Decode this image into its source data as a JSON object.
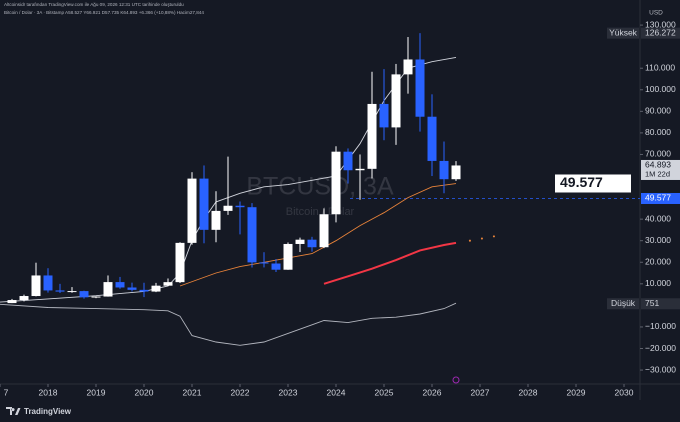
{
  "chart_data": {
    "type": "candlestick",
    "title": "BTCUSD, 3A",
    "subtitle": "Bitcoin / Dolar",
    "header": [
      "Altcoinsidr tarafından TradingView.com ile Ağu 09, 2026 12:31 UTC tarihinde oluşturuldu",
      "Bitcoin / Dolar · 3A · Bitstamp  A58.527 Y66.921 D57.735 K64.893 +6.366 (+10,88%) Hacim27,844"
    ],
    "currency": "USD",
    "brand": "TradingView",
    "x": [
      2017.25,
      2017.5,
      2017.75,
      2018,
      2018.25,
      2018.5,
      2018.75,
      2019,
      2019.25,
      2019.5,
      2019.75,
      2020,
      2020.25,
      2020.5,
      2020.75,
      2021,
      2021.25,
      2021.5,
      2021.75,
      2022,
      2022.25,
      2022.5,
      2022.75,
      2023,
      2023.25,
      2023.5,
      2023.75,
      2024,
      2024.25,
      2024.5,
      2024.75,
      2025,
      2025.25,
      2025.5,
      2025.75,
      2026,
      2026.25,
      2026.5
    ],
    "open": [
      1070,
      2480,
      4340,
      13880,
      6930,
      6390,
      6630,
      3740,
      4100,
      10800,
      8300,
      7200,
      6410,
      9140,
      10780,
      28990,
      58800,
      35040,
      43820,
      46210,
      45540,
      19940,
      19420,
      16540,
      28480,
      30470,
      26970,
      42270,
      71290,
      62680,
      63330,
      93430,
      82550,
      107140,
      114050,
      87500,
      67000,
      58527
    ],
    "high": [
      2990,
      4980,
      19800,
      17250,
      9990,
      8490,
      6820,
      4200,
      13880,
      13200,
      10550,
      10500,
      10430,
      12480,
      29300,
      61780,
      64900,
      52950,
      69000,
      48190,
      47440,
      24670,
      21470,
      29190,
      31430,
      31800,
      45000,
      73800,
      72800,
      70000,
      108350,
      109590,
      111980,
      124470,
      126272,
      97900,
      76000,
      66921
    ],
    "low": [
      1060,
      1840,
      4180,
      5920,
      5750,
      5860,
      3120,
      3350,
      4050,
      7700,
      6430,
      3850,
      6150,
      8900,
      10370,
      28130,
      28800,
      29280,
      41970,
      32930,
      17570,
      17600,
      15480,
      16500,
      24750,
      24900,
      26560,
      38500,
      56500,
      49000,
      58870,
      76600,
      74440,
      98200,
      80600,
      60000,
      52000,
      57735
    ],
    "close": [
      2480,
      4340,
      13880,
      6930,
      6390,
      6630,
      3740,
      4100,
      10800,
      8300,
      7200,
      6410,
      9140,
      10780,
      28990,
      58800,
      35040,
      43820,
      46210,
      45540,
      19940,
      19420,
      16540,
      28480,
      30470,
      26970,
      42270,
      71290,
      62680,
      63330,
      93430,
      82550,
      107140,
      114050,
      87500,
      67000,
      58527,
      64893
    ],
    "up_color": "#ffffff",
    "down_color": "#2962ff",
    "lines": [
      {
        "color": "#d1d4dc",
        "width": 0.9,
        "style": "solid",
        "x": [
          2017,
          2018,
          2019,
          2020,
          2020.5,
          2020.75,
          2021,
          2021.25,
          2021.5,
          2022,
          2022.5,
          2023,
          2023.5,
          2024,
          2024.5,
          2025,
          2025.5,
          2026,
          2026.5
        ],
        "values": [
          1500,
          3000,
          4500,
          6500,
          9000,
          15000,
          30000,
          40000,
          48000,
          52000,
          55000,
          56000,
          58000,
          60000,
          75000,
          95000,
          110000,
          113000,
          115000
        ]
      },
      {
        "color": "#e8833a",
        "width": 0.9,
        "style": "solid",
        "x": [
          2020.75,
          2021.5,
          2022,
          2022.5,
          2023,
          2023.5,
          2024,
          2024.5,
          2025,
          2025.5,
          2026,
          2026.5
        ],
        "values": [
          9000,
          15000,
          18000,
          20000,
          22000,
          24000,
          30000,
          37000,
          43000,
          50000,
          55000,
          56500
        ]
      },
      {
        "color": "#f23645",
        "width": 2,
        "style": "solid",
        "x": [
          2023.75,
          2024.25,
          2024.75,
          2025.25,
          2025.75,
          2026.25,
          2026.5
        ],
        "values": [
          10000,
          13500,
          17000,
          21000,
          25500,
          28000,
          29000
        ]
      },
      {
        "color": "#e8833a",
        "width": 1.5,
        "style": "dots",
        "x": [
          2026.79,
          2027.04,
          2027.29
        ],
        "values": [
          30000,
          31000,
          32000
        ]
      },
      {
        "color": "#b2b5be",
        "width": 0.9,
        "style": "solid",
        "x": [
          2017,
          2018,
          2019,
          2020,
          2020.5,
          2020.75,
          2021,
          2021.5,
          2022,
          2022.5,
          2023,
          2023.5,
          2023.75,
          2024.25,
          2024.75,
          2025.25,
          2025.75,
          2026.25,
          2026.5
        ],
        "values": [
          500,
          -1000,
          -1500,
          -2000,
          -2500,
          -5000,
          -14000,
          -17000,
          -18500,
          -17000,
          -13000,
          -9000,
          -7000,
          -8000,
          -6000,
          -5500,
          -4000,
          -1500,
          1000
        ]
      }
    ],
    "extremes": [
      {
        "label": "Yüksek",
        "value": 126272,
        "value_label": "126.272"
      },
      {
        "label": "Düşük",
        "value": 751,
        "value_label": "751"
      }
    ],
    "last_price": {
      "value": 64893,
      "value_label": "64.893",
      "countdown": "1M 22d"
    },
    "price_line": {
      "value": 49577,
      "value_label": "49.577",
      "color": "#2962ff"
    },
    "xlim": [
      2017,
      2030.333
    ],
    "xticks": [
      {
        "value": 2017,
        "label": "7"
      },
      2018,
      2019,
      2020,
      2021,
      2022,
      2023,
      2024,
      2025,
      2026,
      2027,
      2028,
      2029,
      2030
    ],
    "ylim": [
      -36000,
      137000
    ],
    "yticks": [
      {
        "value": 130000,
        "label": "130.000"
      },
      {
        "value": 110000,
        "label": "110.000"
      },
      {
        "value": 100000,
        "label": "100.000"
      },
      {
        "value": 90000,
        "label": "90.000"
      },
      {
        "value": 80000,
        "label": "80.000"
      },
      {
        "value": 70000,
        "label": "70.000"
      },
      {
        "value": 40000,
        "label": "40.000"
      },
      {
        "value": 30000,
        "label": "30.000"
      },
      {
        "value": 20000,
        "label": "20.000"
      },
      {
        "value": 10000,
        "label": "10.000"
      },
      {
        "value": -10000,
        "label": "−10.000"
      },
      {
        "value": -20000,
        "label": "−20.000"
      },
      {
        "value": -30000,
        "label": "−30.000"
      }
    ]
  }
}
